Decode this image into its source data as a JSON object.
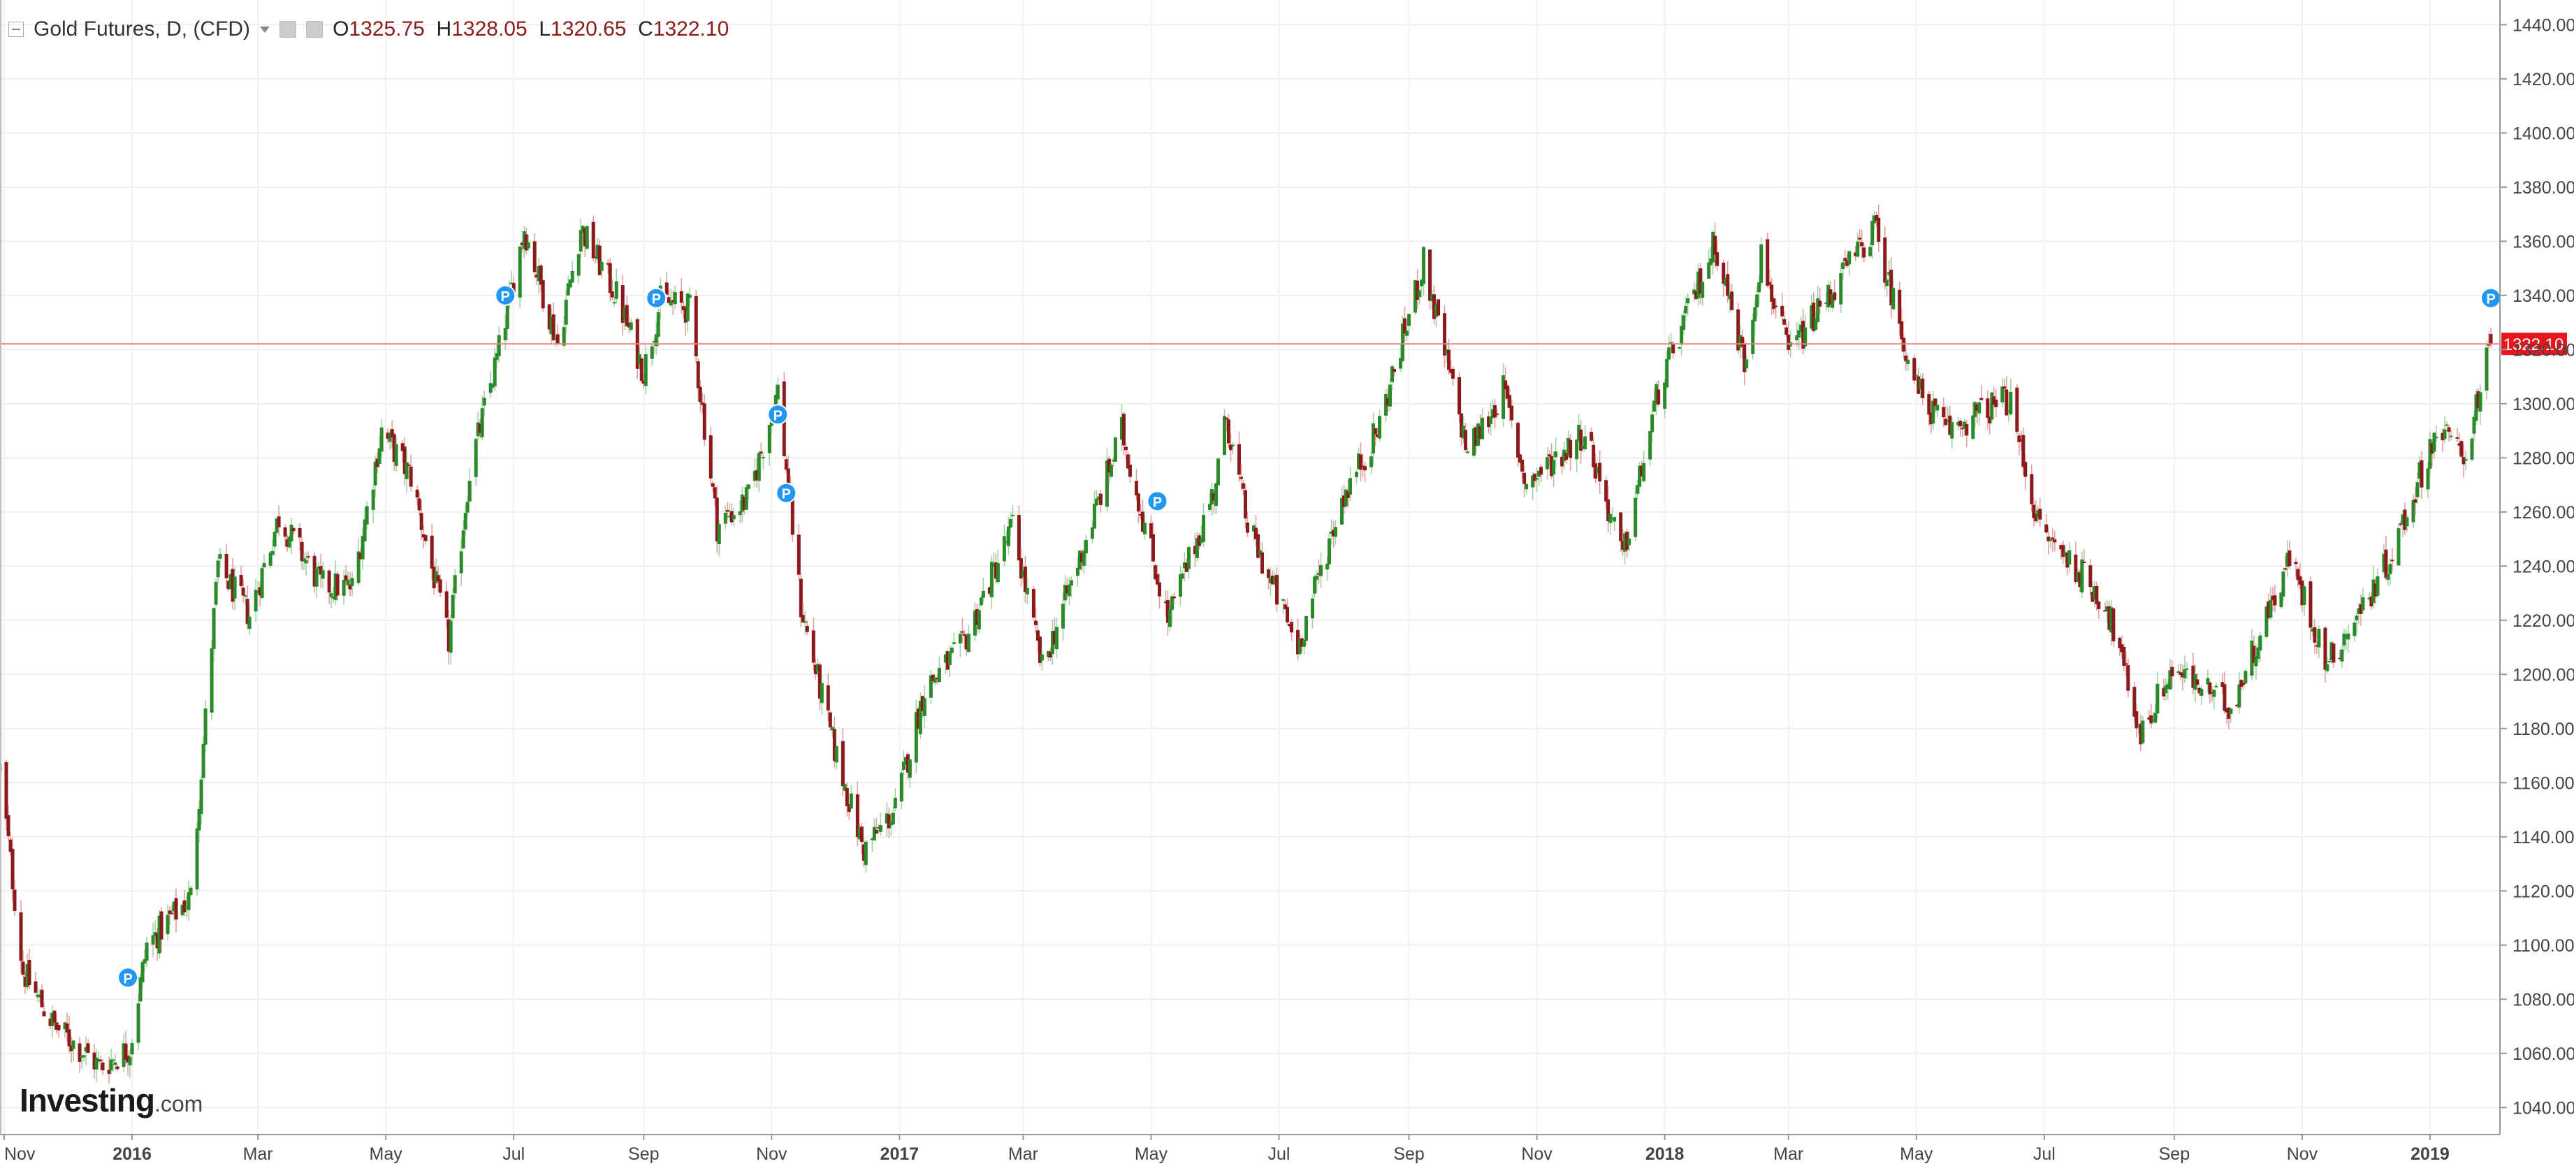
{
  "header": {
    "title": "Gold Futures, D, (CFD)",
    "open_label": "O",
    "open": "1325.75",
    "high_label": "H",
    "high": "1328.05",
    "low_label": "L",
    "low": "1320.65",
    "close_label": "C",
    "close": "1322.10"
  },
  "logo": {
    "brand": "Investing",
    "suffix": ".com"
  },
  "colors": {
    "up": "#2a8a2a",
    "down": "#8b1a1a",
    "price_line": "#f08080",
    "price_tag": "#e8141e",
    "marker": "#2196f3"
  },
  "current_price_label": "1322.10",
  "marker_label": "P",
  "chart_data": {
    "type": "candlestick",
    "x_axis": {
      "labels": [
        "Nov",
        "2016",
        "Mar",
        "May",
        "Jul",
        "Sep",
        "Nov",
        "2017",
        "Mar",
        "May",
        "Jul",
        "Sep",
        "Nov",
        "2018",
        "Mar",
        "May",
        "Jul",
        "Sep",
        "Nov",
        "2019"
      ],
      "bold_labels": [
        "2016",
        "2017",
        "2018",
        "2019"
      ]
    },
    "y_axis": {
      "min": 1030,
      "max": 1445,
      "ticks": [
        1040,
        1060,
        1080,
        1100,
        1120,
        1140,
        1160,
        1180,
        1200,
        1220,
        1240,
        1260,
        1280,
        1300,
        1320,
        1340,
        1360,
        1380,
        1400,
        1420,
        1440
      ],
      "position": "right"
    },
    "grid": true,
    "current_price": 1322.1,
    "closes": [
      {
        "date": "2015-10-30",
        "close": 1165
      },
      {
        "date": "2015-11-10",
        "close": 1090
      },
      {
        "date": "2015-11-25",
        "close": 1070
      },
      {
        "date": "2015-12-17",
        "close": 1055
      },
      {
        "date": "2015-12-31",
        "close": 1062
      },
      {
        "date": "2016-01-08",
        "close": 1100
      },
      {
        "date": "2016-01-29",
        "close": 1118
      },
      {
        "date": "2016-02-11",
        "close": 1240
      },
      {
        "date": "2016-02-26",
        "close": 1222
      },
      {
        "date": "2016-03-11",
        "close": 1258
      },
      {
        "date": "2016-03-31",
        "close": 1233
      },
      {
        "date": "2016-04-15",
        "close": 1232
      },
      {
        "date": "2016-04-29",
        "close": 1290
      },
      {
        "date": "2016-05-13",
        "close": 1273
      },
      {
        "date": "2016-05-31",
        "close": 1212
      },
      {
        "date": "2016-06-10",
        "close": 1275
      },
      {
        "date": "2016-06-24",
        "close": 1320
      },
      {
        "date": "2016-07-06",
        "close": 1365
      },
      {
        "date": "2016-07-22",
        "close": 1322
      },
      {
        "date": "2016-08-02",
        "close": 1365
      },
      {
        "date": "2016-08-19",
        "close": 1340
      },
      {
        "date": "2016-09-01",
        "close": 1312
      },
      {
        "date": "2016-09-09",
        "close": 1338
      },
      {
        "date": "2016-09-23",
        "close": 1335
      },
      {
        "date": "2016-10-06",
        "close": 1255
      },
      {
        "date": "2016-10-21",
        "close": 1265
      },
      {
        "date": "2016-11-04",
        "close": 1305
      },
      {
        "date": "2016-11-15",
        "close": 1225
      },
      {
        "date": "2016-11-30",
        "close": 1175
      },
      {
        "date": "2016-12-15",
        "close": 1135
      },
      {
        "date": "2016-12-30",
        "close": 1150
      },
      {
        "date": "2017-01-13",
        "close": 1195
      },
      {
        "date": "2017-01-31",
        "close": 1210
      },
      {
        "date": "2017-02-24",
        "close": 1255
      },
      {
        "date": "2017-03-10",
        "close": 1202
      },
      {
        "date": "2017-03-31",
        "close": 1250
      },
      {
        "date": "2017-04-17",
        "close": 1290
      },
      {
        "date": "2017-05-09",
        "close": 1220
      },
      {
        "date": "2017-05-31",
        "close": 1268
      },
      {
        "date": "2017-06-06",
        "close": 1295
      },
      {
        "date": "2017-06-16",
        "close": 1255
      },
      {
        "date": "2017-07-10",
        "close": 1210
      },
      {
        "date": "2017-07-31",
        "close": 1265
      },
      {
        "date": "2017-08-17",
        "close": 1290
      },
      {
        "date": "2017-09-08",
        "close": 1352
      },
      {
        "date": "2017-09-29",
        "close": 1282
      },
      {
        "date": "2017-10-16",
        "close": 1305
      },
      {
        "date": "2017-10-27",
        "close": 1270
      },
      {
        "date": "2017-11-24",
        "close": 1290
      },
      {
        "date": "2017-12-12",
        "close": 1243
      },
      {
        "date": "2017-12-29",
        "close": 1305
      },
      {
        "date": "2018-01-25",
        "close": 1360
      },
      {
        "date": "2018-02-08",
        "close": 1315
      },
      {
        "date": "2018-02-16",
        "close": 1355
      },
      {
        "date": "2018-03-01",
        "close": 1318
      },
      {
        "date": "2018-04-11",
        "close": 1365
      },
      {
        "date": "2018-05-01",
        "close": 1306
      },
      {
        "date": "2018-05-15",
        "close": 1290
      },
      {
        "date": "2018-06-14",
        "close": 1302
      },
      {
        "date": "2018-06-29",
        "close": 1253
      },
      {
        "date": "2018-07-16",
        "close": 1240
      },
      {
        "date": "2018-07-31",
        "close": 1225
      },
      {
        "date": "2018-08-16",
        "close": 1178
      },
      {
        "date": "2018-08-31",
        "close": 1202
      },
      {
        "date": "2018-09-28",
        "close": 1188
      },
      {
        "date": "2018-10-26",
        "close": 1243
      },
      {
        "date": "2018-11-13",
        "close": 1204
      },
      {
        "date": "2018-11-30",
        "close": 1225
      },
      {
        "date": "2018-12-14",
        "close": 1245
      },
      {
        "date": "2019-01-04",
        "close": 1290
      },
      {
        "date": "2019-01-18",
        "close": 1282
      },
      {
        "date": "2019-01-30",
        "close": 1322
      }
    ],
    "markers": [
      {
        "date": "2015-12-30",
        "price": 1088,
        "label": "P"
      },
      {
        "date": "2016-06-27",
        "price": 1340,
        "label": "P"
      },
      {
        "date": "2016-09-07",
        "price": 1339,
        "label": "P"
      },
      {
        "date": "2016-11-04",
        "price": 1296,
        "label": "P"
      },
      {
        "date": "2016-11-08",
        "price": 1267,
        "label": "P"
      },
      {
        "date": "2017-05-04",
        "price": 1264,
        "label": "P"
      },
      {
        "date": "2019-01-30",
        "price": 1339,
        "label": "P"
      }
    ]
  }
}
